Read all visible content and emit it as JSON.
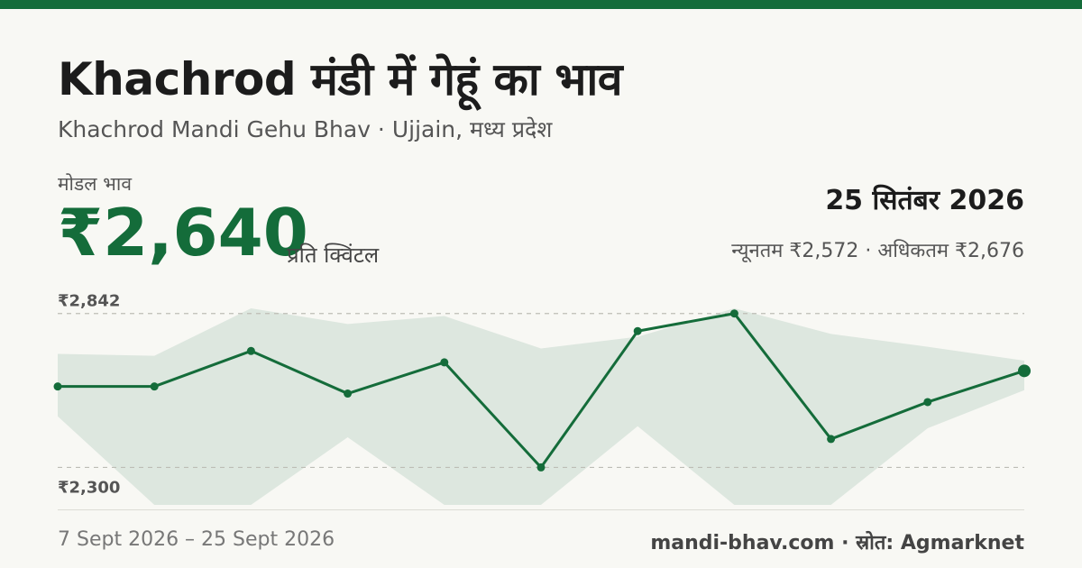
{
  "title": "Khachrod मंडी में गेहूं का भाव",
  "subtitle": "Khachrod Mandi Gehu Bhav · Ujjain, मध्य प्रदेश",
  "modal_label": "मोडल भाव",
  "modal_price": "₹2,640",
  "unit": "प्रति क्विंटल",
  "date": "25 सितंबर 2026",
  "min_max": "न्यूनतम ₹2,572 · अधिकतम ₹2,676",
  "date_range": "7 Sept 2026 – 25 Sept 2026",
  "source": "mandi-bhav.com · स्रोत: Agmarknet",
  "colors": {
    "accent": "#146c3a",
    "band": "#dde7df",
    "grid": "#bdbdb5",
    "top_bar": "#146c3a"
  },
  "chart_data": {
    "type": "line",
    "ytick_labels": [
      "₹2,842",
      "₹2,300"
    ],
    "ylim": [
      2168,
      2930
    ],
    "series": [
      {
        "values": [
          2585,
          2585,
          2710,
          2560,
          2670,
          2300,
          2780,
          2842,
          2400,
          2530,
          2640
        ]
      }
    ],
    "band": {
      "max": [
        2700,
        2693,
        2860,
        2805,
        2833,
        2719,
        2760,
        2860,
        2770,
        2725,
        2676
      ],
      "min": [
        2480,
        2168,
        2168,
        2406,
        2168,
        2168,
        2445,
        2168,
        2168,
        2438,
        2572
      ]
    },
    "grid": true
  }
}
